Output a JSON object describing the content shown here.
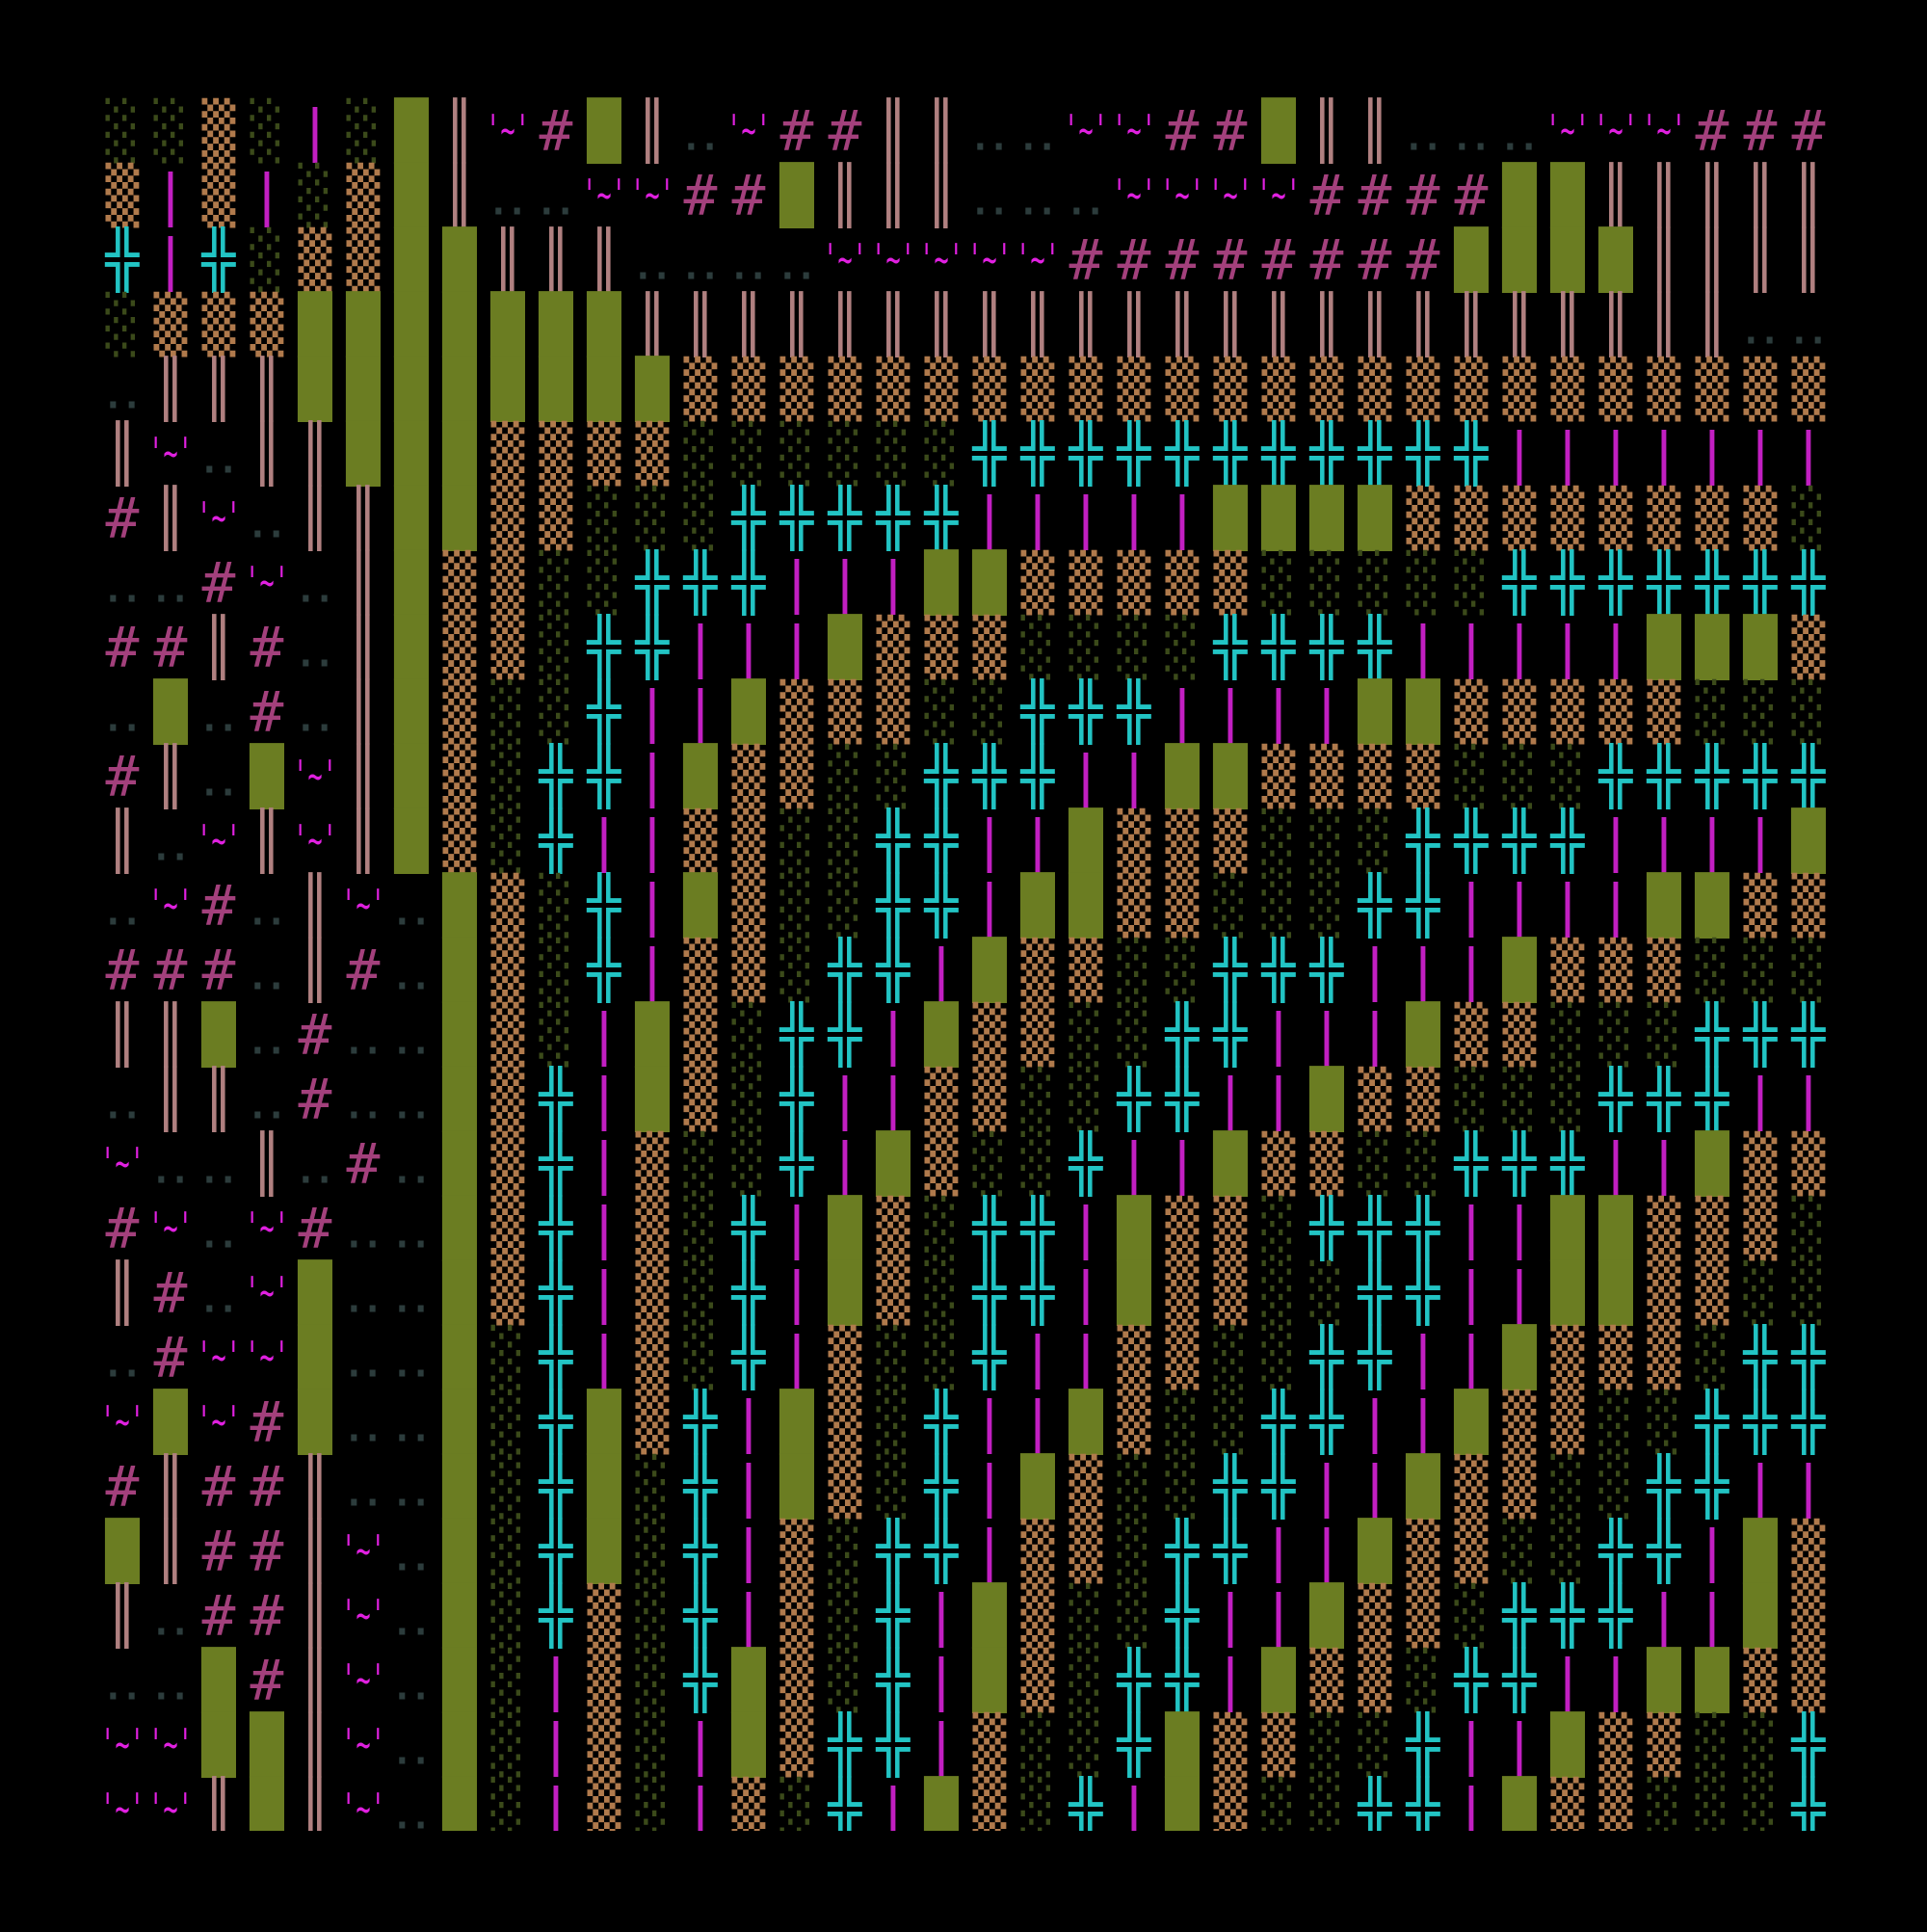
{
  "grid": {
    "colors": {
      "░": "#3b4a1a",
      "▒": "#b07a4c",
      "█": "#6b7d22",
      "║": "#b08080",
      "|": "#c21fc2",
      "╬": "#22c4c4",
      "'~'": "#e020e0",
      "#": "#a3407c",
      "‥": "#2c3c3c"
    },
    "rows": [
      [
        "░",
        "░",
        "▒",
        "░",
        "|",
        "░",
        "█",
        "║",
        "'~'",
        "#",
        "█",
        "║",
        "‥",
        "'~'",
        "#",
        "#",
        "║",
        "║",
        "‥",
        "‥",
        "'~'",
        "'~'",
        "#",
        "#",
        "█",
        "║",
        "║",
        "‥",
        "‥",
        "‥",
        "'~'",
        "'~'",
        "'~'",
        "#",
        "#",
        "#"
      ],
      [
        "▒",
        "|",
        "▒",
        "|",
        "░",
        "▒",
        "█",
        "║",
        "‥",
        "‥",
        "'~'",
        "'~'",
        "#",
        "#",
        "█",
        "║",
        "║",
        "║",
        "‥",
        "‥",
        "‥",
        "'~'",
        "'~'",
        "'~'",
        "'~'",
        "#",
        "#",
        "#",
        "#",
        "█",
        "█",
        "║",
        "║",
        "║",
        "║",
        "║"
      ],
      [
        "╬",
        "|",
        "╬",
        "░",
        "▒",
        "▒",
        "█",
        "█",
        "║",
        "║",
        "║",
        "‥",
        "‥",
        "‥",
        "‥",
        "'~'",
        "'~'",
        "'~'",
        "'~'",
        "'~'",
        "#",
        "#",
        "#",
        "#",
        "#",
        "#",
        "#",
        "#",
        "█",
        "█",
        "█",
        "█",
        "║",
        "║",
        "║",
        "║"
      ],
      [
        "░",
        "▒",
        "▒",
        "▒",
        "█",
        "█",
        "█",
        "█",
        "█",
        "█",
        "█",
        "║",
        "║",
        "║",
        "║",
        "║",
        "║",
        "║",
        "║",
        "║",
        "║",
        "║",
        "║",
        "║",
        "║",
        "║",
        "║",
        "║",
        "║",
        "║",
        "║",
        "║",
        "║",
        "║",
        "‥",
        "‥"
      ],
      [
        "‥",
        "║",
        "║",
        "║",
        "█",
        "█",
        "█",
        "█",
        "█",
        "█",
        "█",
        "█",
        "▒",
        "▒",
        "▒",
        "▒",
        "▒",
        "▒",
        "▒",
        "▒",
        "▒",
        "▒",
        "▒",
        "▒",
        "▒",
        "▒",
        "▒",
        "▒",
        "▒",
        "▒",
        "▒",
        "▒",
        "▒",
        "▒",
        "▒",
        "▒"
      ],
      [
        "║",
        "'~'",
        "‥",
        "║",
        "║",
        "█",
        "█",
        "█",
        "▒",
        "▒",
        "▒",
        "▒",
        "░",
        "░",
        "░",
        "░",
        "░",
        "░",
        "╬",
        "╬",
        "╬",
        "╬",
        "╬",
        "╬",
        "╬",
        "╬",
        "╬",
        "╬",
        "╬",
        "|",
        "|",
        "|",
        "|",
        "|",
        "|",
        "|"
      ],
      [
        "#",
        "║",
        "'~'",
        "‥",
        "║",
        "║",
        "█",
        "█",
        "▒",
        "▒",
        "░",
        "░",
        "░",
        "╬",
        "╬",
        "╬",
        "╬",
        "╬",
        "|",
        "|",
        "|",
        "|",
        "|",
        "█",
        "█",
        "█",
        "█",
        "▒",
        "▒",
        "▒",
        "▒",
        "▒",
        "▒",
        "▒",
        "▒",
        "░"
      ],
      [
        "‥",
        "‥",
        "#",
        "'~'",
        "‥",
        "║",
        "█",
        "▒",
        "▒",
        "░",
        "░",
        "╬",
        "╬",
        "╬",
        "|",
        "|",
        "|",
        "█",
        "█",
        "▒",
        "▒",
        "▒",
        "▒",
        "▒",
        "░",
        "░",
        "░",
        "░",
        "░",
        "╬",
        "╬",
        "╬",
        "╬",
        "╬",
        "╬",
        "╬"
      ],
      [
        "#",
        "#",
        "║",
        "#",
        "‥",
        "║",
        "█",
        "▒",
        "▒",
        "░",
        "╬",
        "╬",
        "|",
        "|",
        "|",
        "█",
        "▒",
        "▒",
        "▒",
        "░",
        "░",
        "░",
        "░",
        "╬",
        "╬",
        "╬",
        "╬",
        "|",
        "|",
        "|",
        "|",
        "|",
        "█",
        "█",
        "█",
        "▒"
      ],
      [
        "‥",
        "█",
        "‥",
        "#",
        "‥",
        "║",
        "█",
        "▒",
        "░",
        "░",
        "╬",
        "|",
        "|",
        "█",
        "▒",
        "▒",
        "▒",
        "░",
        "░",
        "╬",
        "╬",
        "╬",
        "|",
        "|",
        "|",
        "|",
        "█",
        "█",
        "▒",
        "▒",
        "▒",
        "▒",
        "▒",
        "░",
        "░",
        "░"
      ],
      [
        "#",
        "║",
        "‥",
        "█",
        "'~'",
        "║",
        "█",
        "▒",
        "░",
        "╬",
        "╬",
        "|",
        "█",
        "▒",
        "▒",
        "░",
        "░",
        "╬",
        "╬",
        "╬",
        "|",
        "|",
        "█",
        "█",
        "▒",
        "▒",
        "▒",
        "▒",
        "░",
        "░",
        "░",
        "╬",
        "╬",
        "╬",
        "╬",
        "╬"
      ],
      [
        "║",
        "‥",
        "'~'",
        "║",
        "'~'",
        "║",
        "█",
        "▒",
        "░",
        "╬",
        "|",
        "|",
        "▒",
        "▒",
        "░",
        "░",
        "╬",
        "╬",
        "|",
        "|",
        "█",
        "▒",
        "▒",
        "▒",
        "░",
        "░",
        "░",
        "╬",
        "╬",
        "╬",
        "╬",
        "|",
        "|",
        "|",
        "|",
        "█"
      ],
      [
        "‥",
        "'~'",
        "#",
        "‥",
        "║",
        "'~'",
        "‥",
        "█",
        "▒",
        "░",
        "╬",
        "|",
        "█",
        "▒",
        "░",
        "░",
        "╬",
        "╬",
        "|",
        "█",
        "█",
        "▒",
        "▒",
        "░",
        "░",
        "░",
        "╬",
        "╬",
        "|",
        "|",
        "|",
        "|",
        "█",
        "█",
        "▒",
        "▒"
      ],
      [
        "#",
        "#",
        "#",
        "‥",
        "║",
        "#",
        "‥",
        "█",
        "▒",
        "░",
        "╬",
        "|",
        "▒",
        "▒",
        "░",
        "╬",
        "╬",
        "|",
        "█",
        "▒",
        "▒",
        "░",
        "░",
        "╬",
        "╬",
        "╬",
        "|",
        "|",
        "|",
        "█",
        "▒",
        "▒",
        "▒",
        "░",
        "░",
        "░"
      ],
      [
        "║",
        "║",
        "█",
        "‥",
        "#",
        "‥",
        "‥",
        "█",
        "▒",
        "░",
        "|",
        "█",
        "▒",
        "░",
        "╬",
        "╬",
        "|",
        "█",
        "▒",
        "▒",
        "░",
        "░",
        "╬",
        "╬",
        "|",
        "|",
        "|",
        "█",
        "▒",
        "▒",
        "░",
        "░",
        "░",
        "╬",
        "╬",
        "╬"
      ],
      [
        "‥",
        "║",
        "║",
        "‥",
        "#",
        "‥",
        "‥",
        "█",
        "▒",
        "╬",
        "|",
        "█",
        "▒",
        "░",
        "╬",
        "|",
        "|",
        "▒",
        "▒",
        "░",
        "░",
        "╬",
        "╬",
        "|",
        "|",
        "█",
        "▒",
        "▒",
        "░",
        "░",
        "░",
        "╬",
        "╬",
        "╬",
        "|",
        "|"
      ],
      [
        "'~'",
        "‥",
        "‥",
        "║",
        "‥",
        "#",
        "‥",
        "█",
        "▒",
        "╬",
        "|",
        "▒",
        "░",
        "░",
        "╬",
        "|",
        "█",
        "▒",
        "░",
        "░",
        "╬",
        "|",
        "|",
        "█",
        "▒",
        "▒",
        "░",
        "░",
        "╬",
        "╬",
        "╬",
        "|",
        "|",
        "█",
        "▒",
        "▒"
      ],
      [
        "#",
        "'~'",
        "‥",
        "'~'",
        "#",
        "‥",
        "‥",
        "█",
        "▒",
        "╬",
        "|",
        "▒",
        "░",
        "╬",
        "|",
        "█",
        "▒",
        "░",
        "╬",
        "╬",
        "|",
        "█",
        "▒",
        "▒",
        "░",
        "╬",
        "╬",
        "╬",
        "|",
        "|",
        "█",
        "█",
        "▒",
        "▒",
        "▒",
        "░"
      ],
      [
        "║",
        "#",
        "‥",
        "'~'",
        "█",
        "‥",
        "‥",
        "█",
        "▒",
        "╬",
        "|",
        "▒",
        "░",
        "╬",
        "|",
        "█",
        "▒",
        "░",
        "╬",
        "╬",
        "|",
        "█",
        "▒",
        "▒",
        "░",
        "░",
        "╬",
        "╬",
        "|",
        "|",
        "█",
        "█",
        "▒",
        "▒",
        "░",
        "░"
      ],
      [
        "‥",
        "#",
        "'~'",
        "'~'",
        "█",
        "‥",
        "‥",
        "█",
        "░",
        "╬",
        "|",
        "▒",
        "░",
        "╬",
        "|",
        "▒",
        "░",
        "░",
        "╬",
        "|",
        "|",
        "▒",
        "▒",
        "░",
        "░",
        "╬",
        "╬",
        "|",
        "|",
        "█",
        "▒",
        "▒",
        "▒",
        "░",
        "╬",
        "╬"
      ],
      [
        "'~'",
        "█",
        "'~'",
        "#",
        "█",
        "‥",
        "‥",
        "█",
        "░",
        "╬",
        "█",
        "▒",
        "╬",
        "|",
        "█",
        "▒",
        "░",
        "╬",
        "|",
        "|",
        "█",
        "▒",
        "░",
        "░",
        "╬",
        "╬",
        "|",
        "|",
        "█",
        "▒",
        "▒",
        "░",
        "░",
        "╬",
        "╬",
        "╬"
      ],
      [
        "#",
        "║",
        "#",
        "#",
        "║",
        "‥",
        "‥",
        "█",
        "░",
        "╬",
        "█",
        "░",
        "╬",
        "|",
        "█",
        "▒",
        "░",
        "╬",
        "|",
        "█",
        "▒",
        "░",
        "░",
        "╬",
        "╬",
        "|",
        "|",
        "█",
        "▒",
        "▒",
        "░",
        "░",
        "╬",
        "╬",
        "|",
        "|"
      ],
      [
        "█",
        "║",
        "#",
        "#",
        "║",
        "'~'",
        "‥",
        "█",
        "░",
        "╬",
        "█",
        "░",
        "╬",
        "|",
        "▒",
        "░",
        "╬",
        "╬",
        "|",
        "▒",
        "▒",
        "░",
        "╬",
        "╬",
        "|",
        "|",
        "█",
        "▒",
        "▒",
        "░",
        "░",
        "╬",
        "╬",
        "|",
        "█",
        "▒"
      ],
      [
        "║",
        "‥",
        "#",
        "#",
        "║",
        "'~'",
        "‥",
        "█",
        "░",
        "╬",
        "▒",
        "░",
        "╬",
        "|",
        "▒",
        "░",
        "╬",
        "|",
        "█",
        "▒",
        "░",
        "░",
        "╬",
        "|",
        "|",
        "█",
        "▒",
        "▒",
        "░",
        "╬",
        "╬",
        "╬",
        "|",
        "|",
        "█",
        "▒"
      ],
      [
        "‥",
        "‥",
        "█",
        "#",
        "║",
        "'~'",
        "‥",
        "█",
        "░",
        "|",
        "▒",
        "░",
        "╬",
        "█",
        "▒",
        "░",
        "╬",
        "|",
        "█",
        "▒",
        "░",
        "╬",
        "╬",
        "|",
        "█",
        "▒",
        "▒",
        "░",
        "╬",
        "╬",
        "|",
        "|",
        "█",
        "█",
        "▒",
        "▒"
      ],
      [
        "'~'",
        "'~'",
        "█",
        "█",
        "║",
        "'~'",
        "‥",
        "█",
        "░",
        "|",
        "▒",
        "░",
        "|",
        "█",
        "▒",
        "╬",
        "╬",
        "|",
        "▒",
        "░",
        "░",
        "╬",
        "█",
        "▒",
        "▒",
        "░",
        "░",
        "╬",
        "|",
        "|",
        "█",
        "▒",
        "▒",
        "░",
        "░",
        "╬"
      ],
      [
        "'~'",
        "'~'",
        "║",
        "█",
        "║",
        "'~'",
        "‥",
        "█",
        "░",
        "|",
        "▒",
        "░",
        "|",
        "▒",
        "░",
        "╬",
        "|",
        "█",
        "▒",
        "░",
        "╬",
        "|",
        "█",
        "▒",
        "░",
        "░",
        "╬",
        "╬",
        "|",
        "█",
        "▒",
        "▒",
        "░",
        "░",
        "░",
        "╬"
      ]
    ]
  }
}
